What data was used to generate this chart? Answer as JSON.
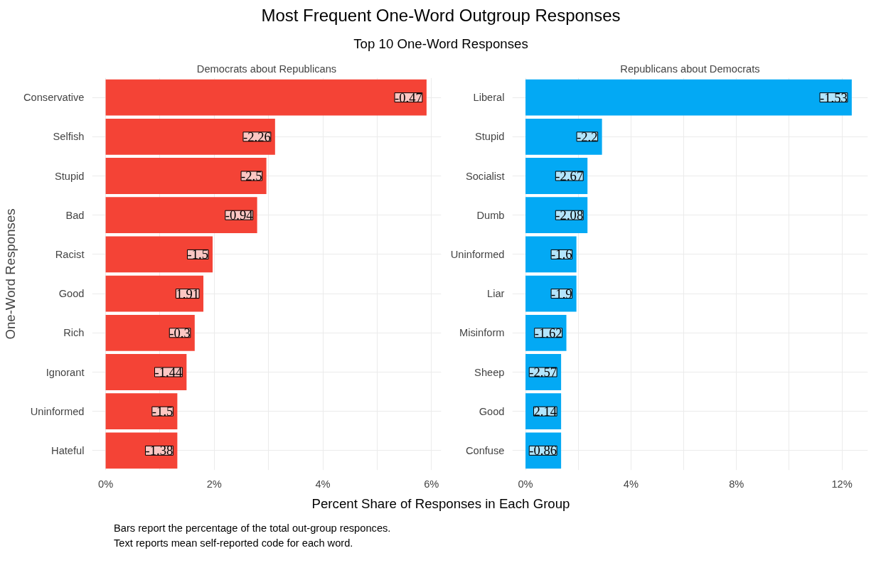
{
  "chart_data": [
    {
      "type": "bar",
      "orientation": "horizontal",
      "title": "Democrats about Republicans",
      "ylabel": "One-Word Responses",
      "xlabel": "Percent Share of Responses in Each Group",
      "annotations": [
        "Most Frequent One-Word Outgroup Responses",
        "Top 10 One-Word Responses",
        "Bars report the percentage of the total out-group responces.",
        "Text reports mean self-reported code for each word.",
        {
          "text": "-0.47",
          "x": 5.91,
          "y": "Conservative"
        },
        {
          "text": "-2.26",
          "x": 3.12,
          "y": "Selfish"
        },
        {
          "text": "-2.5",
          "x": 2.96,
          "y": "Stupid"
        },
        {
          "text": "-0.94",
          "x": 2.79,
          "y": "Bad"
        },
        {
          "text": "-1.5",
          "x": 1.97,
          "y": "Racist"
        },
        {
          "text": "1.91",
          "x": 1.8,
          "y": "Good"
        },
        {
          "text": "-0.3",
          "x": 1.64,
          "y": "Rich"
        },
        {
          "text": "-1.44",
          "x": 1.49,
          "y": "Ignorant"
        },
        {
          "text": "-1.5",
          "x": 1.32,
          "y": "Uninformed"
        },
        {
          "text": "-1.38",
          "x": 1.32,
          "y": "Hateful"
        }
      ],
      "categories": [
        "Conservative",
        "Selfish",
        "Stupid",
        "Bad",
        "Racist",
        "Good",
        "Rich",
        "Ignorant",
        "Uninformed",
        "Hateful"
      ],
      "values": [
        5.91,
        3.12,
        2.96,
        2.79,
        1.97,
        1.8,
        1.64,
        1.49,
        1.32,
        1.32
      ],
      "color": "#f44336",
      "xlim": [
        -0.25,
        6.18
      ],
      "xticks": [
        {
          "value": 0,
          "label": "0%"
        },
        {
          "value": 2,
          "label": "2%"
        },
        {
          "value": 4,
          "label": "4%"
        },
        {
          "value": 6,
          "label": "6%"
        }
      ],
      "grid": true
    },
    {
      "type": "bar",
      "orientation": "horizontal",
      "title": "Republicans about Democrats",
      "annotations": [
        {
          "text": "-1.53",
          "x": 12.37,
          "y": "Liberal"
        },
        {
          "text": "-2.2",
          "x": 2.9,
          "y": "Stupid"
        },
        {
          "text": "-2.67",
          "x": 2.35,
          "y": "Socialist"
        },
        {
          "text": "-2.08",
          "x": 2.35,
          "y": "Dumb"
        },
        {
          "text": "-1.6",
          "x": 1.93,
          "y": "Uninformed"
        },
        {
          "text": "-1.9",
          "x": 1.93,
          "y": "Liar"
        },
        {
          "text": "-1.62",
          "x": 1.55,
          "y": "Misinform"
        },
        {
          "text": "-2.57",
          "x": 1.35,
          "y": "Sheep"
        },
        {
          "text": "2.14",
          "x": 1.35,
          "y": "Good"
        },
        {
          "text": "-0.86",
          "x": 1.35,
          "y": "Confuse"
        }
      ],
      "categories": [
        "Liberal",
        "Stupid",
        "Socialist",
        "Dumb",
        "Uninformed",
        "Liar",
        "Misinform",
        "Sheep",
        "Good",
        "Confuse"
      ],
      "values": [
        12.37,
        2.9,
        2.35,
        2.35,
        1.93,
        1.93,
        1.55,
        1.35,
        1.35,
        1.35
      ],
      "color": "#03a9f4",
      "xlim": [
        -0.5,
        12.98
      ],
      "xticks": [
        {
          "value": 0,
          "label": "0%"
        },
        {
          "value": 4,
          "label": "4%"
        },
        {
          "value": 8,
          "label": "8%"
        },
        {
          "value": 12,
          "label": "12%"
        }
      ],
      "grid": true
    }
  ]
}
